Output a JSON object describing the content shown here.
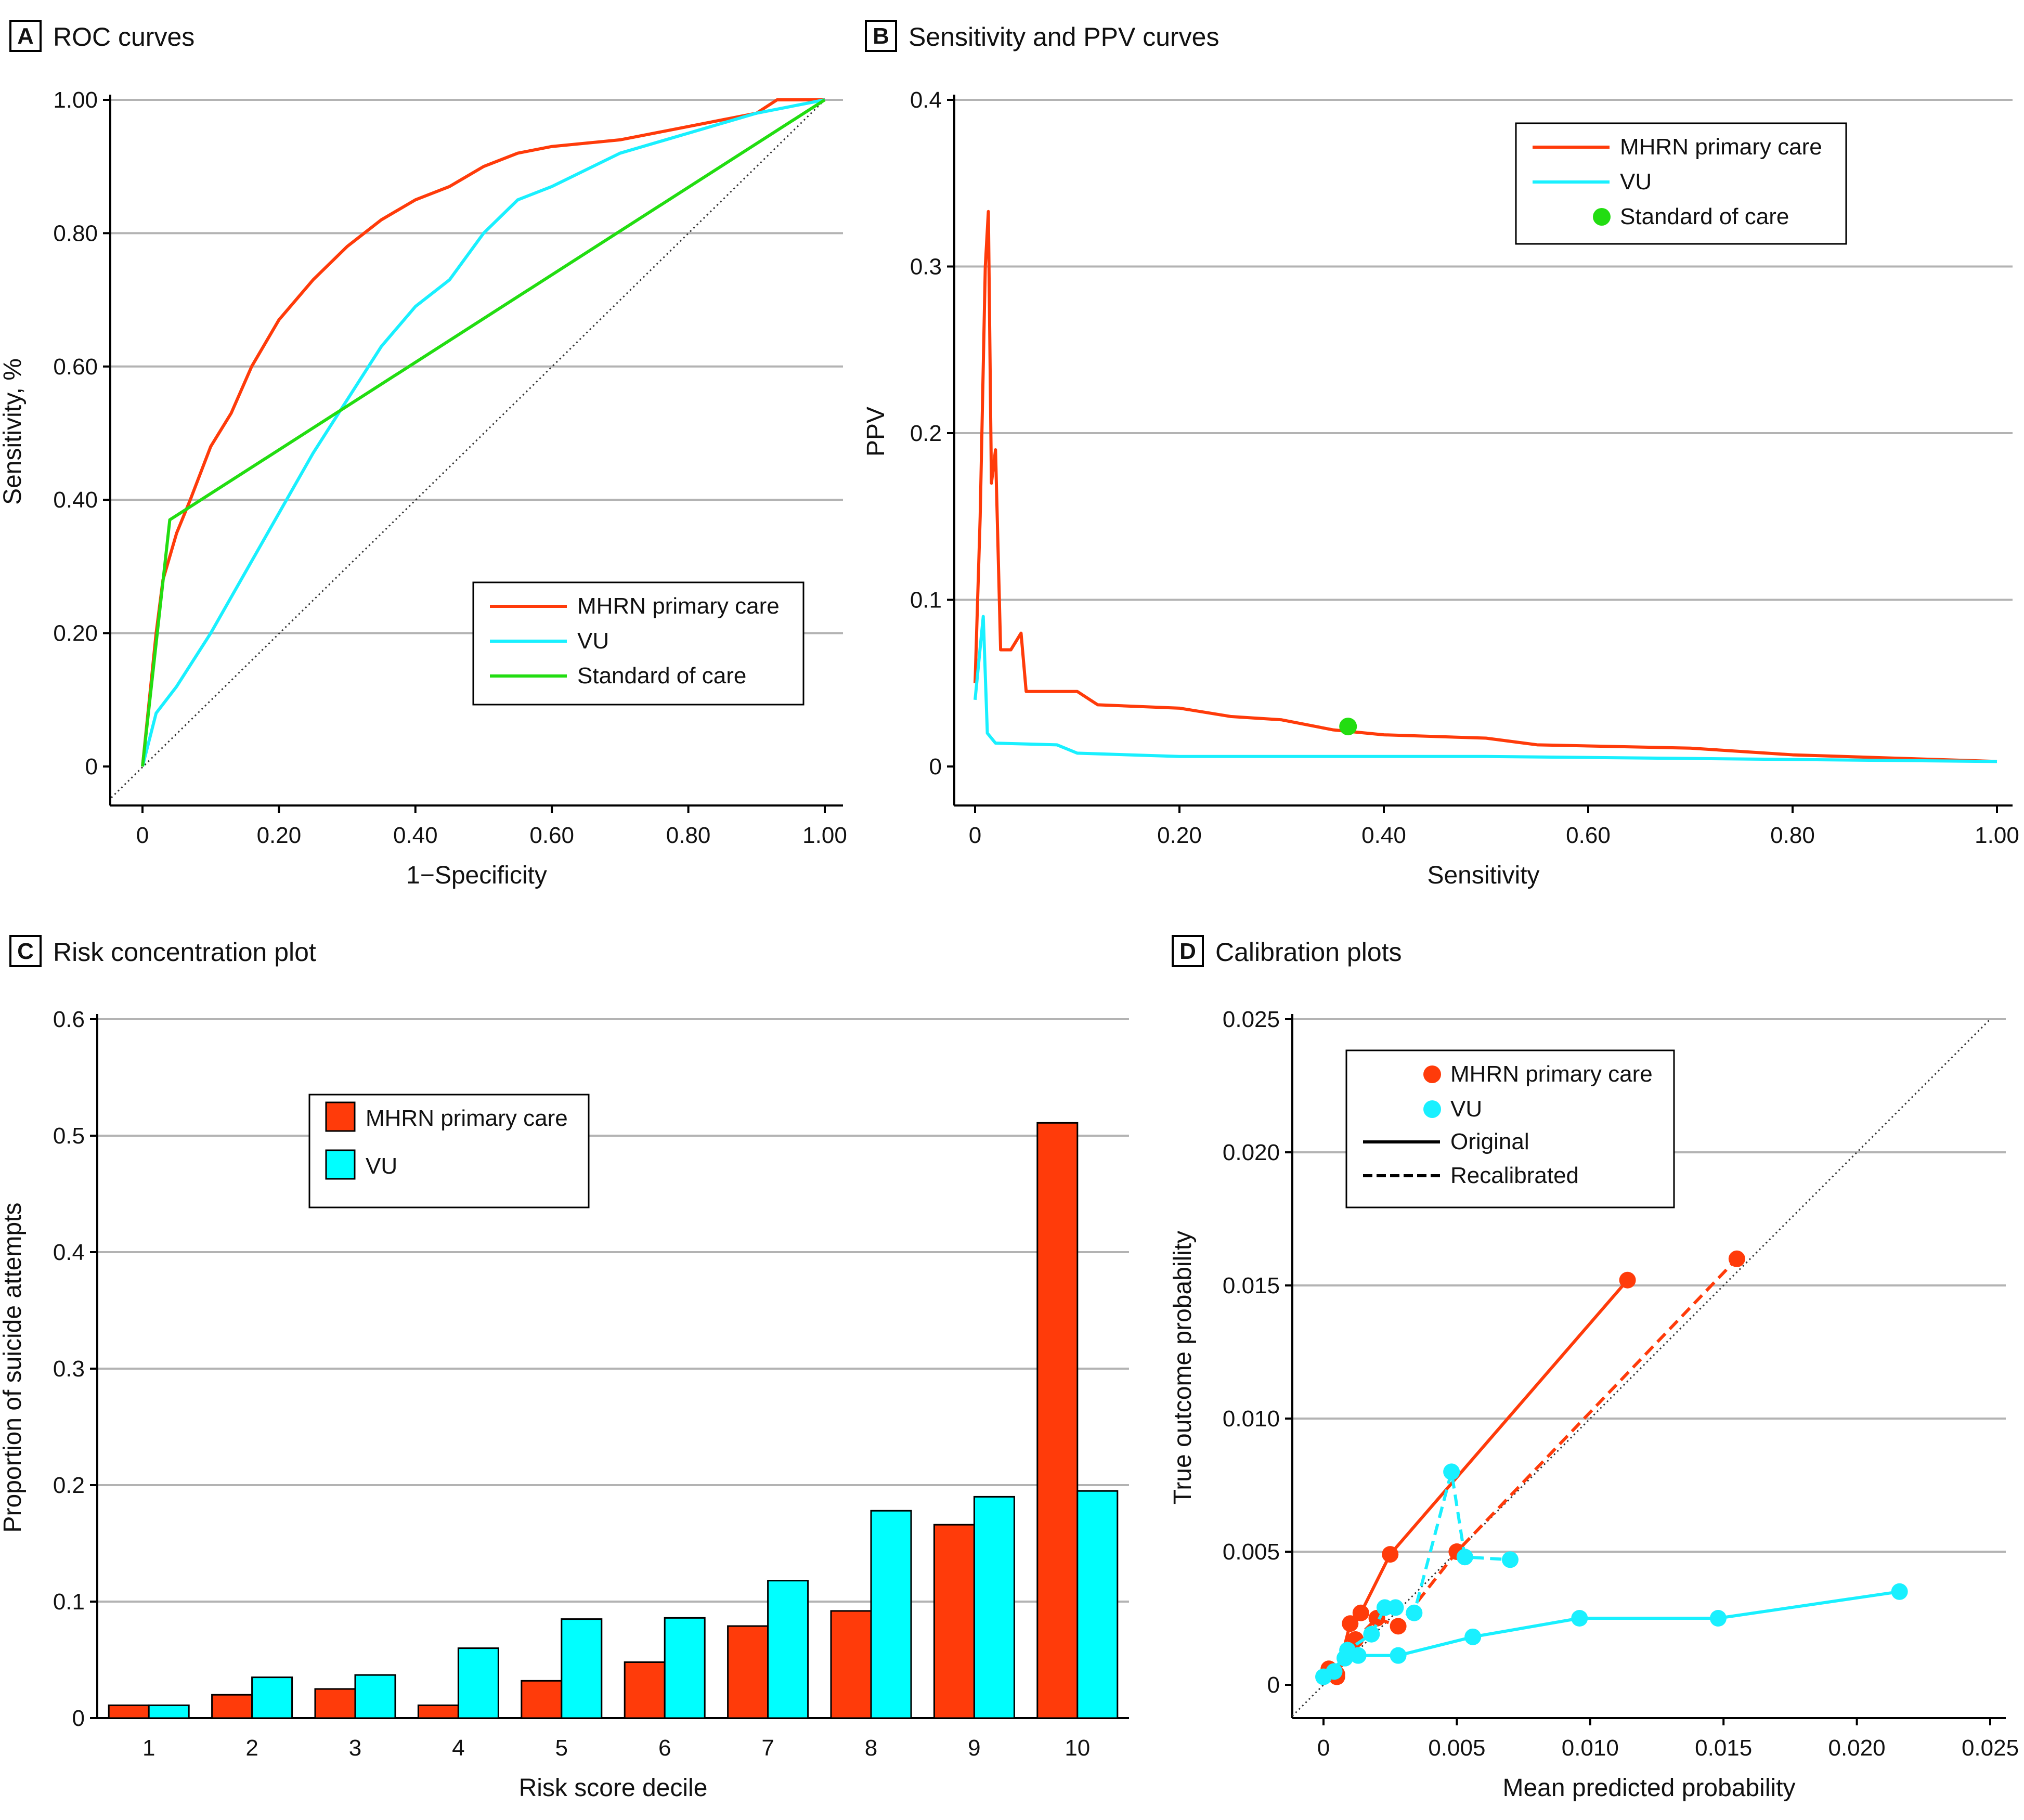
{
  "chart_data": [
    {
      "panel": "A",
      "title": "ROC curves",
      "type": "line",
      "xlabel": "1−Specificity",
      "ylabel": "Sensitivity, %",
      "xlim": [
        0,
        1
      ],
      "ylim": [
        0,
        1
      ],
      "xticks": [
        "0",
        "0.20",
        "0.40",
        "0.60",
        "0.80",
        "1.00"
      ],
      "yticks": [
        "0",
        "0.20",
        "0.40",
        "0.60",
        "0.80",
        "1.00"
      ],
      "legend_position": "bottom-right",
      "series": [
        {
          "name": "MHRN primary care",
          "color": "#ff3b0a",
          "x": [
            0,
            0.01,
            0.02,
            0.03,
            0.05,
            0.07,
            0.1,
            0.13,
            0.16,
            0.2,
            0.25,
            0.3,
            0.35,
            0.4,
            0.45,
            0.5,
            0.55,
            0.6,
            0.7,
            0.8,
            0.9,
            0.93,
            1
          ],
          "y": [
            0,
            0.1,
            0.2,
            0.28,
            0.35,
            0.4,
            0.48,
            0.53,
            0.6,
            0.67,
            0.73,
            0.78,
            0.82,
            0.85,
            0.87,
            0.9,
            0.92,
            0.93,
            0.94,
            0.96,
            0.98,
            1,
            1
          ]
        },
        {
          "name": "VU",
          "color": "#19f0ff",
          "x": [
            0,
            0.02,
            0.05,
            0.1,
            0.15,
            0.2,
            0.25,
            0.3,
            0.35,
            0.4,
            0.45,
            0.5,
            0.55,
            0.6,
            0.7,
            0.8,
            0.9,
            1
          ],
          "y": [
            0,
            0.08,
            0.12,
            0.2,
            0.29,
            0.38,
            0.47,
            0.55,
            0.63,
            0.69,
            0.73,
            0.8,
            0.85,
            0.87,
            0.92,
            0.95,
            0.98,
            1
          ]
        },
        {
          "name": "Standard of care",
          "color": "#22dd11",
          "x": [
            0,
            0.04,
            1
          ],
          "y": [
            0,
            0.37,
            1
          ]
        }
      ],
      "reference_line": "diagonal"
    },
    {
      "panel": "B",
      "title": "Sensitivity and PPV curves",
      "type": "line",
      "xlabel": "Sensitivity",
      "ylabel": "PPV",
      "xlim": [
        0,
        1
      ],
      "ylim": [
        0,
        0.4
      ],
      "xticks": [
        "0",
        "0.20",
        "0.40",
        "0.60",
        "0.80",
        "1.00"
      ],
      "yticks": [
        "0",
        "0.1",
        "0.2",
        "0.3",
        "0.4"
      ],
      "legend_position": "top-right",
      "series": [
        {
          "name": "MHRN primary care",
          "color": "#ff3b0a",
          "x": [
            0,
            0.005,
            0.01,
            0.013,
            0.016,
            0.02,
            0.025,
            0.035,
            0.045,
            0.05,
            0.1,
            0.12,
            0.2,
            0.25,
            0.3,
            0.35,
            0.4,
            0.5,
            0.55,
            0.7,
            0.8,
            0.9,
            1
          ],
          "y": [
            0.05,
            0.15,
            0.3,
            0.333,
            0.17,
            0.19,
            0.07,
            0.07,
            0.08,
            0.045,
            0.045,
            0.037,
            0.035,
            0.03,
            0.028,
            0.022,
            0.019,
            0.017,
            0.013,
            0.011,
            0.007,
            0.005,
            0.003
          ]
        },
        {
          "name": "VU",
          "color": "#19f0ff",
          "x": [
            0,
            0.008,
            0.012,
            0.02,
            0.08,
            0.1,
            0.2,
            0.5,
            1
          ],
          "y": [
            0.04,
            0.09,
            0.02,
            0.014,
            0.013,
            0.008,
            0.006,
            0.006,
            0.003
          ]
        },
        {
          "name": "Standard of care",
          "color": "#22dd11",
          "point": true,
          "x": [
            0.365
          ],
          "y": [
            0.024
          ]
        }
      ]
    },
    {
      "panel": "C",
      "title": "Risk concentration plot",
      "type": "bar",
      "xlabel": "Risk score decile",
      "ylabel": "Proportion of suicide attempts",
      "ylim": [
        0,
        0.6
      ],
      "yticks": [
        "0",
        "0.1",
        "0.2",
        "0.3",
        "0.4",
        "0.5",
        "0.6"
      ],
      "categories": [
        "1",
        "2",
        "3",
        "4",
        "5",
        "6",
        "7",
        "8",
        "9",
        "10"
      ],
      "legend_position": "top-left",
      "series": [
        {
          "name": "MHRN primary care",
          "color": "#ff3b0a",
          "values": [
            0.011,
            0.02,
            0.025,
            0.011,
            0.032,
            0.048,
            0.079,
            0.092,
            0.166,
            0.511
          ]
        },
        {
          "name": "VU",
          "color": "#00ffff",
          "values": [
            0.011,
            0.035,
            0.037,
            0.06,
            0.085,
            0.086,
            0.118,
            0.178,
            0.19,
            0.195
          ]
        }
      ]
    },
    {
      "panel": "D",
      "title": "Calibration plots",
      "type": "scatter",
      "xlabel": "Mean predicted probability",
      "ylabel": "True outcome probability",
      "xlim": [
        0,
        0.025
      ],
      "ylim": [
        0,
        0.025
      ],
      "xticks": [
        "0",
        "0.005",
        "0.010",
        "0.015",
        "0.020",
        "0.025"
      ],
      "yticks": [
        "0",
        "0.005",
        "0.010",
        "0.015",
        "0.020",
        "0.025"
      ],
      "legend_position": "top-left",
      "legend_extra": [
        "Original",
        "Recalibrated"
      ],
      "series": [
        {
          "name": "MHRN primary care",
          "style": "Original",
          "color": "#ff3b0a",
          "x": [
            0.0002,
            0.0005,
            0.001,
            0.0014,
            0.0025,
            0.0114
          ],
          "y": [
            0.0006,
            0.0003,
            0.0023,
            0.0027,
            0.0049,
            0.0152
          ]
        },
        {
          "name": "MHRN primary care",
          "style": "Recalibrated",
          "color": "#ff3b0a",
          "x": [
            0.0005,
            0.0012,
            0.002,
            0.0028,
            0.005,
            0.0155
          ],
          "y": [
            0.0004,
            0.0017,
            0.0025,
            0.0022,
            0.005,
            0.016
          ]
        },
        {
          "name": "VU",
          "style": "Original",
          "color": "#19f0ff",
          "x": [
            0.0,
            0.0008,
            0.0013,
            0.0028,
            0.0056,
            0.0096,
            0.0148,
            0.0216
          ],
          "y": [
            0.0003,
            0.001,
            0.0011,
            0.0011,
            0.0018,
            0.0025,
            0.0025,
            0.0035
          ]
        },
        {
          "name": "VU",
          "style": "Recalibrated",
          "color": "#19f0ff",
          "x": [
            0.0004,
            0.0009,
            0.0018,
            0.0023,
            0.0027,
            0.0034,
            0.0048,
            0.0053,
            0.007
          ],
          "y": [
            0.0005,
            0.0013,
            0.0019,
            0.0029,
            0.0029,
            0.0027,
            0.008,
            0.0048,
            0.0047
          ]
        }
      ],
      "reference_line": "diagonal"
    }
  ]
}
